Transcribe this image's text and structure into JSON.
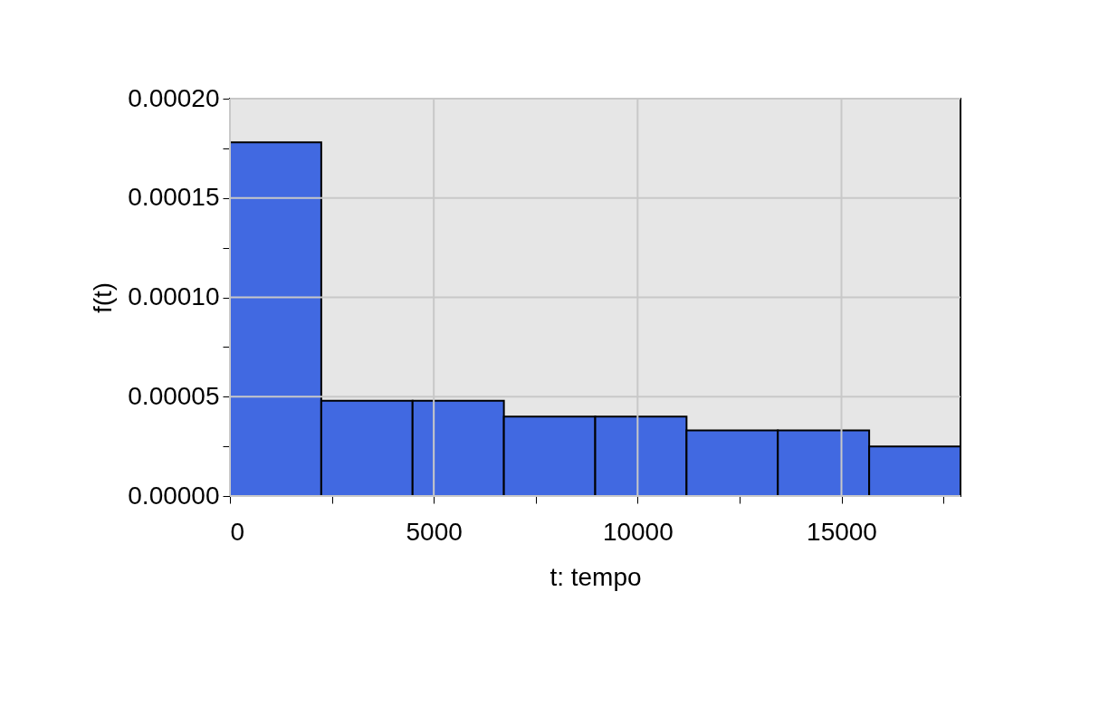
{
  "chart_data": {
    "type": "histogram",
    "xlabel": "t: tempo",
    "ylabel": "f(t)",
    "bins": [
      0,
      2240,
      4480,
      6720,
      8960,
      11200,
      13440,
      15680,
      17920
    ],
    "values": [
      0.000178,
      4.8e-05,
      4.8e-05,
      4e-05,
      4e-05,
      3.3e-05,
      3.3e-05,
      2.5e-05
    ],
    "color": "#4169e1",
    "xlim": [
      0,
      17920
    ],
    "xticks": [
      0,
      {
        "value": 2500,
        "label": null
      },
      5000,
      {
        "value": 7500,
        "label": null
      },
      10000,
      {
        "value": 12500,
        "label": null
      },
      15000,
      {
        "value": 17500,
        "label": null
      }
    ],
    "ylim": [
      0,
      0.0002
    ],
    "yticks": [
      {
        "value": 0,
        "label": "0.00000"
      },
      {
        "value": 2.5e-05,
        "label": null
      },
      {
        "value": 5e-05,
        "label": "0.00005"
      },
      {
        "value": 7.5e-05,
        "label": null
      },
      {
        "value": 0.0001,
        "label": "0.00010"
      },
      {
        "value": 0.000125,
        "label": null
      },
      {
        "value": 0.00015,
        "label": "0.00015"
      },
      {
        "value": 0.000175,
        "label": null
      },
      {
        "value": 0.0002,
        "label": "0.00020"
      }
    ],
    "grid": true
  }
}
